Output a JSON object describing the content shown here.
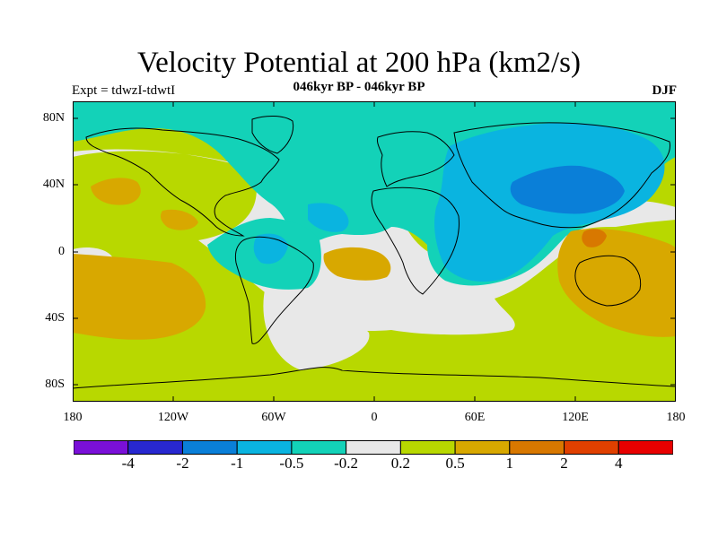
{
  "title": "Velocity Potential at 200 hPa (km2/s)",
  "subtitle": "046kyr BP - 046kyr BP",
  "expt_label": "Expt = tdwzI-tdwtI",
  "season": "DJF",
  "lat_ticks": [
    "80N",
    "40N",
    "0",
    "40S",
    "80S"
  ],
  "lon_ticks": [
    "180",
    "120W",
    "60W",
    "0",
    "60E",
    "120E",
    "180"
  ],
  "colorbar": {
    "labels": [
      "-4",
      "-2",
      "-1",
      "-0.5",
      "-0.2",
      "0.2",
      "0.5",
      "1",
      "2",
      "4"
    ],
    "colors": [
      "#7a10d8",
      "#2828d0",
      "#0a7fd8",
      "#0ab4e0",
      "#13d2b8",
      "#e8e8e8",
      "#b8d800",
      "#d8a800",
      "#d87800",
      "#e04000",
      "#e80000"
    ]
  },
  "colors": {
    "neg_weak": "#13d2b8",
    "neg_mid": "#0ab4e0",
    "neg_strong": "#0a7fd8",
    "neutral": "#e8e8e8",
    "pos_weak": "#b8d800",
    "pos_mid": "#d8a800",
    "pos_strong": "#d87800"
  }
}
